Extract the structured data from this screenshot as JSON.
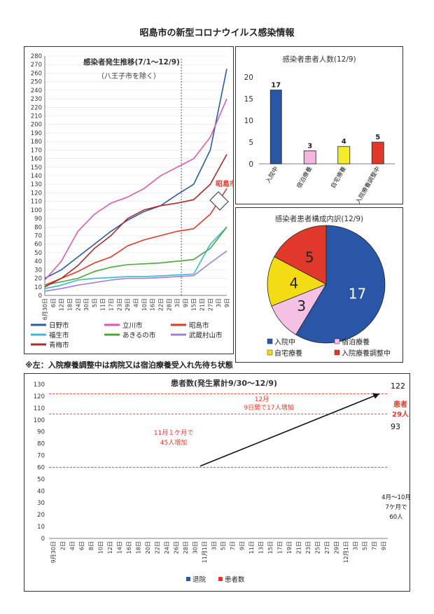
{
  "page_title": "昭島市の新型コロナウイルス感染情報",
  "note": "※左：入院療養調整中は病院又は宿泊療養受入れ先待ち状態",
  "chart_data": [
    {
      "type": "line",
      "title": "感染者発生推移(7/1～12/9)",
      "subtitle": "（八王子市を除く）",
      "yticks": [
        0,
        10,
        20,
        30,
        40,
        50,
        60,
        70,
        80,
        90,
        100,
        110,
        120,
        130,
        140,
        150,
        160,
        170,
        180,
        190,
        200,
        210,
        220,
        230,
        240,
        250,
        260,
        270,
        280
      ],
      "ylim": [
        0,
        280
      ],
      "x_labels": [
        "6月30日",
        "6日",
        "12日",
        "18日",
        "24日",
        "30日",
        "5日",
        "11日",
        "17日",
        "23日",
        "29日",
        "4日",
        "10日",
        "16日",
        "22日",
        "28日",
        "3日",
        "9日",
        "15日",
        "21日",
        "27日",
        "3日",
        "9日"
      ],
      "annotation": "昭島市",
      "series": [
        {
          "name": "日野市",
          "color": "#2a5aa8",
          "x": [
            0,
            2,
            4,
            6,
            8,
            10,
            12,
            14,
            16,
            18,
            20,
            22
          ],
          "values": [
            20,
            30,
            45,
            60,
            75,
            88,
            98,
            105,
            118,
            130,
            170,
            265
          ]
        },
        {
          "name": "立川市",
          "color": "#e05aa8",
          "x": [
            0,
            2,
            4,
            6,
            8,
            10,
            12,
            14,
            16,
            18,
            20,
            22
          ],
          "values": [
            18,
            40,
            75,
            95,
            108,
            115,
            125,
            140,
            150,
            160,
            185,
            230
          ]
        },
        {
          "name": "昭島市",
          "color": "#e0392b",
          "x": [
            0,
            2,
            4,
            6,
            8,
            10,
            12,
            14,
            16,
            18,
            20,
            22
          ],
          "values": [
            12,
            20,
            28,
            38,
            45,
            58,
            65,
            70,
            75,
            78,
            95,
            125
          ]
        },
        {
          "name": "福生市",
          "color": "#3ab8d8",
          "x": [
            0,
            2,
            4,
            6,
            8,
            10,
            12,
            14,
            16,
            18,
            20,
            22
          ],
          "values": [
            8,
            12,
            18,
            20,
            21,
            22,
            22,
            23,
            24,
            25,
            60,
            80
          ]
        },
        {
          "name": "あきるの市",
          "color": "#4aa83a",
          "x": [
            0,
            2,
            4,
            6,
            8,
            10,
            12,
            14,
            16,
            18,
            20,
            22
          ],
          "values": [
            12,
            16,
            20,
            28,
            33,
            36,
            37,
            38,
            40,
            42,
            55,
            80
          ]
        },
        {
          "name": "武蔵村山市",
          "color": "#a080d0",
          "x": [
            0,
            2,
            4,
            6,
            8,
            10,
            12,
            14,
            16,
            18,
            20,
            22
          ],
          "values": [
            5,
            8,
            12,
            15,
            18,
            20,
            20,
            21,
            22,
            23,
            38,
            52
          ]
        },
        {
          "name": "青梅市",
          "color": "#a82a2a",
          "x": [
            0,
            2,
            4,
            6,
            8,
            10,
            12,
            14,
            16,
            18,
            20,
            22
          ],
          "values": [
            10,
            20,
            35,
            55,
            70,
            90,
            100,
            105,
            108,
            112,
            130,
            165
          ]
        }
      ]
    },
    {
      "type": "bar",
      "title": "感染者患者人数(12/9)",
      "categories": [
        "入院中",
        "宿泊療養",
        "自宅療養",
        "入院療養調整中"
      ],
      "values": [
        17,
        3,
        4,
        5
      ],
      "colors": [
        "#2a56a8",
        "#f4b8e0",
        "#f4ec2a",
        "#e0392b"
      ],
      "yticks": [
        0,
        5,
        10,
        15,
        20
      ],
      "ylim": [
        0,
        20
      ]
    },
    {
      "type": "pie",
      "title": "感染者患者構成内訳(12/9)",
      "labels": [
        "入院中",
        "宿泊療養",
        "自宅療養",
        "入院療養調整中"
      ],
      "values": [
        17,
        3,
        4,
        5
      ],
      "colors": [
        "#2a56a8",
        "#f4c0e4",
        "#f4dc14",
        "#e0392b"
      ]
    },
    {
      "type": "bar",
      "title": "患者数(発生累計9/30～12/9)",
      "yticks": [
        0,
        10,
        20,
        30,
        40,
        50,
        60,
        70,
        80,
        90,
        100,
        110,
        120,
        130
      ],
      "ylim": [
        0,
        130
      ],
      "x_labels": [
        "9月30日",
        "2日",
        "4日",
        "6日",
        "8日",
        "10日",
        "12日",
        "14日",
        "16日",
        "18日",
        "20日",
        "22日",
        "24日",
        "26日",
        "28日",
        "30日",
        "11月1日",
        "3日",
        "5日",
        "7日",
        "9日",
        "11日",
        "13日",
        "15日",
        "17日",
        "19日",
        "21日",
        "23日",
        "25日",
        "27日",
        "29日",
        "12月1日",
        "3日",
        "5日",
        "7日",
        "9日"
      ],
      "series": [
        {
          "name": "退院",
          "color": "#2a56a8"
        },
        {
          "name": "患者数",
          "color": "#e0392b"
        }
      ],
      "annotations": [
        {
          "text": "122"
        },
        {
          "text": "93"
        },
        {
          "text": "12月"
        },
        {
          "text": "9日間で17人増加"
        },
        {
          "text": "患者"
        },
        {
          "text": "29人"
        },
        {
          "text": "11月１ケ月で"
        },
        {
          "text": "45人増加"
        },
        {
          "text": "4月～10月"
        },
        {
          "text": "7ケ月で"
        },
        {
          "text": "60人"
        }
      ]
    }
  ]
}
